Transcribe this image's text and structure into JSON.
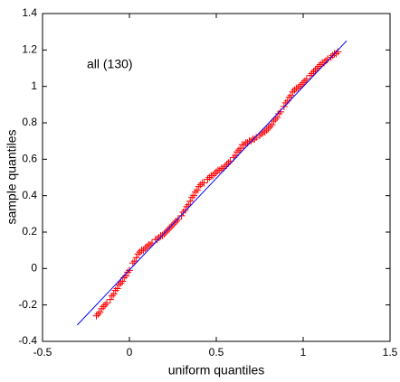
{
  "chart_data": {
    "type": "scatter",
    "xlabel": "uniform quantiles",
    "ylabel": "sample quantiles",
    "annotation": "all (130)",
    "xlim": [
      -0.5,
      1.5
    ],
    "xticks": [
      -0.5,
      0,
      0.5,
      1,
      1.5
    ],
    "ylim": [
      -0.4,
      1.4
    ],
    "yticks": [
      -0.4,
      -0.2,
      0,
      0.2,
      0.4,
      0.6,
      0.8,
      1,
      1.2,
      1.4
    ],
    "grid": false,
    "series": [
      {
        "style": "markers",
        "color": "#ff0000",
        "x": [
          -0.19,
          -0.18,
          -0.17,
          -0.16,
          -0.15,
          -0.14,
          -0.13,
          -0.11,
          -0.1,
          -0.09,
          -0.08,
          -0.07,
          -0.06,
          -0.05,
          -0.04,
          -0.03,
          -0.02,
          -0.01,
          0.0,
          0.02,
          0.03,
          0.04,
          0.05,
          0.06,
          0.07,
          0.08,
          0.09,
          0.1,
          0.11,
          0.12,
          0.13,
          0.15,
          0.16,
          0.17,
          0.18,
          0.19,
          0.2,
          0.21,
          0.22,
          0.23,
          0.24,
          0.25,
          0.26,
          0.27,
          0.28,
          0.3,
          0.31,
          0.32,
          0.33,
          0.34,
          0.35,
          0.36,
          0.37,
          0.38,
          0.39,
          0.4,
          0.41,
          0.42,
          0.43,
          0.45,
          0.46,
          0.47,
          0.48,
          0.49,
          0.5,
          0.51,
          0.52,
          0.53,
          0.54,
          0.55,
          0.56,
          0.57,
          0.58,
          0.6,
          0.61,
          0.62,
          0.63,
          0.64,
          0.65,
          0.66,
          0.67,
          0.68,
          0.69,
          0.7,
          0.71,
          0.72,
          0.73,
          0.75,
          0.76,
          0.77,
          0.78,
          0.79,
          0.8,
          0.81,
          0.82,
          0.83,
          0.84,
          0.85,
          0.86,
          0.87,
          0.89,
          0.9,
          0.91,
          0.92,
          0.93,
          0.94,
          0.95,
          0.96,
          0.97,
          0.98,
          0.99,
          1.0,
          1.01,
          1.02,
          1.04,
          1.05,
          1.06,
          1.07,
          1.08,
          1.09,
          1.1,
          1.11,
          1.12,
          1.13,
          1.14,
          1.16,
          1.17,
          1.18,
          1.19,
          1.2
        ],
        "values": [
          -0.26,
          -0.25,
          -0.24,
          -0.22,
          -0.21,
          -0.2,
          -0.19,
          -0.17,
          -0.15,
          -0.14,
          -0.12,
          -0.11,
          -0.09,
          -0.08,
          -0.07,
          -0.05,
          -0.04,
          -0.02,
          -0.01,
          0.03,
          0.04,
          0.06,
          0.08,
          0.09,
          0.1,
          0.1,
          0.11,
          0.12,
          0.13,
          0.13,
          0.14,
          0.16,
          0.16,
          0.17,
          0.18,
          0.18,
          0.19,
          0.2,
          0.21,
          0.22,
          0.23,
          0.24,
          0.25,
          0.26,
          0.27,
          0.29,
          0.31,
          0.32,
          0.34,
          0.35,
          0.37,
          0.39,
          0.4,
          0.42,
          0.43,
          0.45,
          0.46,
          0.47,
          0.47,
          0.49,
          0.5,
          0.51,
          0.51,
          0.52,
          0.53,
          0.54,
          0.54,
          0.55,
          0.55,
          0.56,
          0.57,
          0.58,
          0.59,
          0.61,
          0.62,
          0.64,
          0.65,
          0.66,
          0.68,
          0.68,
          0.69,
          0.69,
          0.7,
          0.7,
          0.71,
          0.71,
          0.72,
          0.73,
          0.74,
          0.75,
          0.75,
          0.76,
          0.77,
          0.78,
          0.79,
          0.81,
          0.82,
          0.83,
          0.85,
          0.86,
          0.89,
          0.91,
          0.92,
          0.94,
          0.95,
          0.97,
          0.98,
          0.99,
          0.99,
          1.0,
          1.01,
          1.02,
          1.03,
          1.04,
          1.06,
          1.07,
          1.08,
          1.09,
          1.1,
          1.11,
          1.12,
          1.13,
          1.13,
          1.14,
          1.15,
          1.16,
          1.17,
          1.18,
          1.18,
          1.19
        ]
      },
      {
        "style": "line",
        "color": "#0000ff",
        "x": [
          -0.3,
          1.25
        ],
        "values": [
          -0.31,
          1.25
        ]
      }
    ]
  }
}
